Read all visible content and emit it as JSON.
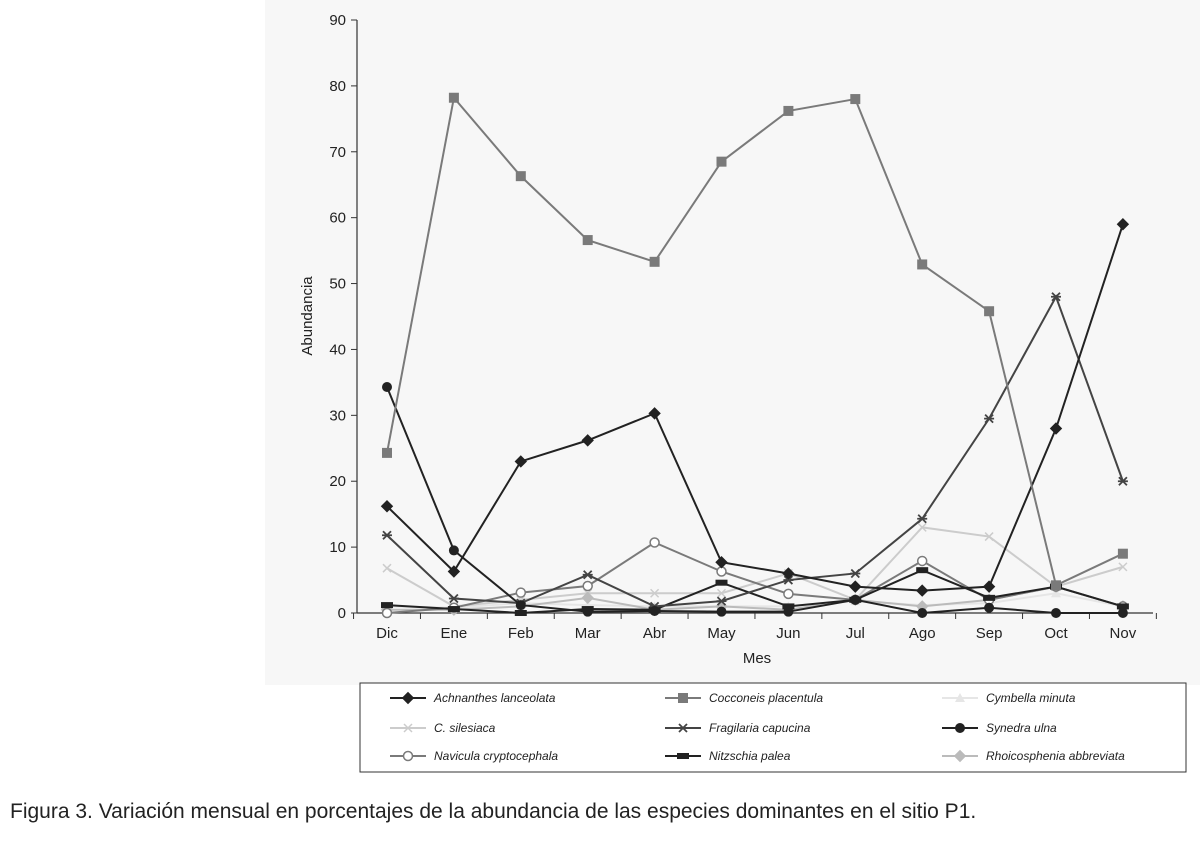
{
  "chart_data": {
    "type": "line",
    "title": "",
    "xlabel": "Mes",
    "ylabel": "Abundancia",
    "categories": [
      "Dic",
      "Ene",
      "Feb",
      "Mar",
      "Abr",
      "May",
      "Jun",
      "Jul",
      "Ago",
      "Sep",
      "Oct",
      "Nov"
    ],
    "ylim": [
      0,
      90
    ],
    "yticks": [
      0,
      10,
      20,
      30,
      40,
      50,
      60,
      70,
      80,
      90
    ],
    "grid": false,
    "legend_position": "bottom",
    "series": [
      {
        "name": "Achnanthes lanceolata",
        "marker": "diamond",
        "color": "#222222",
        "values": [
          16.2,
          6.3,
          23.0,
          26.2,
          30.3,
          7.7,
          6.0,
          4.0,
          3.4,
          4.0,
          28.0,
          59.0
        ]
      },
      {
        "name": "Cocconeis placentula",
        "marker": "square",
        "color": "#7a7a7a",
        "values": [
          24.3,
          78.2,
          66.3,
          56.6,
          53.3,
          68.5,
          76.2,
          78.0,
          52.9,
          45.8,
          4.2,
          9.0
        ]
      },
      {
        "name": "Cymbella minuta",
        "marker": "triangle",
        "color": "#e6e6e6",
        "values": [
          1.0,
          0.8,
          1.5,
          1.2,
          1.0,
          1.0,
          1.0,
          1.8,
          1.2,
          1.5,
          3.0,
          1.0
        ]
      },
      {
        "name": "C. silesiaca",
        "marker": "x",
        "color": "#cccccc",
        "values": [
          6.8,
          1.0,
          2.0,
          3.0,
          3.0,
          3.0,
          6.0,
          2.0,
          13.0,
          11.6,
          4.0,
          7.0
        ]
      },
      {
        "name": "Fragilaria capucina",
        "marker": "star",
        "color": "#444444",
        "values": [
          11.8,
          2.2,
          1.5,
          5.8,
          1.0,
          1.8,
          5.0,
          6.0,
          14.3,
          29.5,
          48.0,
          20.0
        ]
      },
      {
        "name": "Synedra ulna",
        "marker": "circle",
        "color": "#222222",
        "values": [
          34.3,
          9.5,
          1.2,
          0.2,
          0.3,
          0.2,
          0.2,
          2.0,
          0.0,
          0.8,
          0.0,
          0.0
        ]
      },
      {
        "name": "Navicula cryptocephala",
        "marker": "open-circle",
        "color": "#7a7a7a",
        "values": [
          0.0,
          0.8,
          3.1,
          4.1,
          10.7,
          6.3,
          2.9,
          2.0,
          7.9,
          2.0,
          4.0,
          1.0
        ]
      },
      {
        "name": "Nitzschia palea",
        "marker": "dash",
        "color": "#222222",
        "values": [
          1.2,
          0.6,
          0.0,
          0.6,
          0.5,
          4.6,
          1.0,
          2.0,
          6.5,
          2.3,
          4.0,
          1.0
        ]
      },
      {
        "name": "Rhoicosphenia abbreviata",
        "marker": "diamond",
        "color": "#bbbbbb",
        "values": [
          0.5,
          0.5,
          1.0,
          2.3,
          0.5,
          1.0,
          0.5,
          2.0,
          1.0,
          2.0,
          4.0,
          1.0
        ]
      }
    ]
  },
  "caption": "Figura 3. Variación mensual en porcentajes de la abundancia de las especies dominantes en el sitio P1."
}
